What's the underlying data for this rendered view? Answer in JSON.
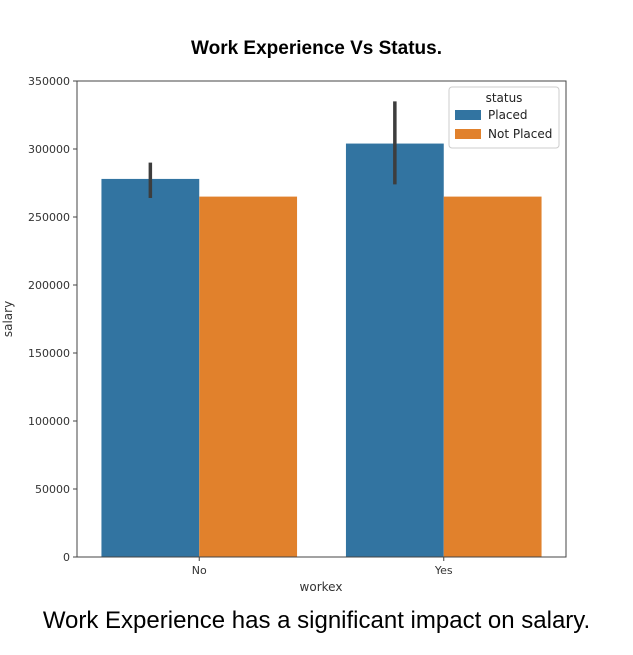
{
  "chart_data": {
    "type": "bar",
    "title": "Work Experience Vs Status.",
    "xlabel": "workex",
    "ylabel": "salary",
    "categories": [
      "No",
      "Yes"
    ],
    "ylim": [
      0,
      350000
    ],
    "yticks": [
      0,
      50000,
      100000,
      150000,
      200000,
      250000,
      300000,
      350000
    ],
    "legend": {
      "title": "status",
      "placement": "top-right"
    },
    "grid": false,
    "series": [
      {
        "name": "Placed",
        "color": "#3274a1",
        "values": [
          278000,
          304000
        ],
        "error_low": [
          264000,
          274000
        ],
        "error_high": [
          290000,
          335000
        ]
      },
      {
        "name": "Not Placed",
        "color": "#e1812c",
        "values": [
          265000,
          265000
        ]
      }
    ]
  },
  "caption": "Work Experience has a significant impact on salary."
}
